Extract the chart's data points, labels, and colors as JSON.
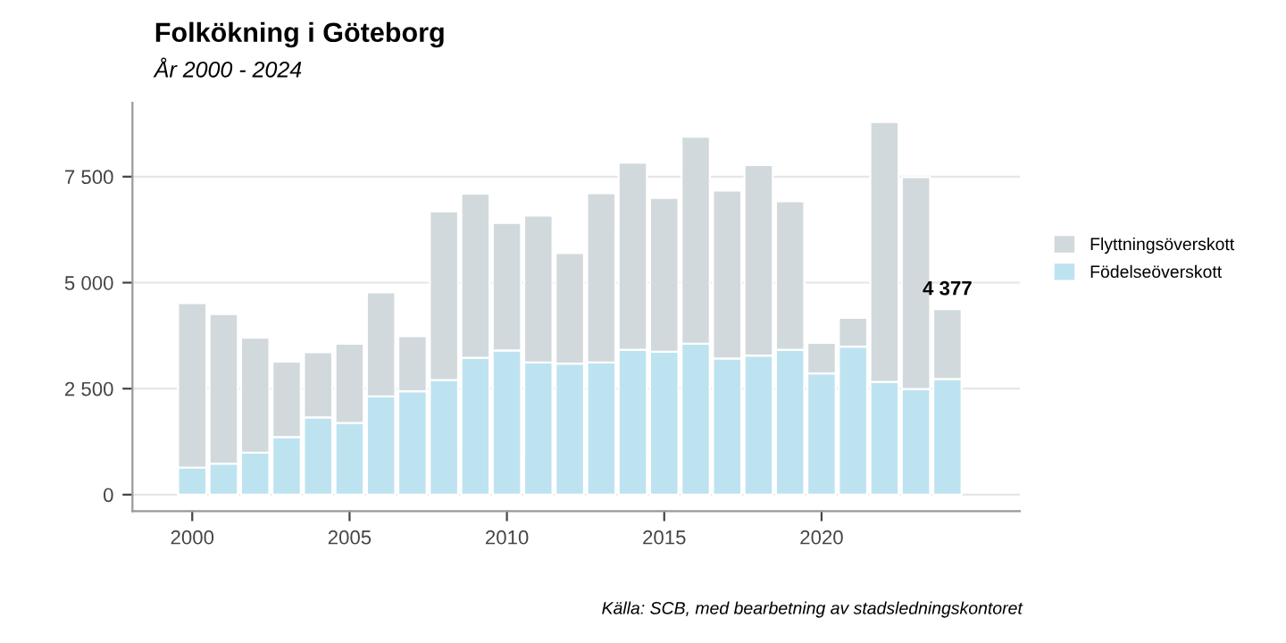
{
  "chart_data": {
    "type": "bar",
    "title": "Folkökning i Göteborg",
    "subtitle": "År 2000 - 2024",
    "x": [
      2000,
      2001,
      2002,
      2003,
      2004,
      2005,
      2006,
      2007,
      2008,
      2009,
      2010,
      2011,
      2012,
      2013,
      2014,
      2015,
      2016,
      2017,
      2018,
      2019,
      2020,
      2021,
      2022,
      2023,
      2024
    ],
    "stacked": true,
    "series": [
      {
        "name": "Födelseöverskott",
        "color": "#bee3f0",
        "values": [
          640,
          730,
          990,
          1360,
          1820,
          1690,
          2320,
          2440,
          2700,
          3230,
          3400,
          3120,
          3090,
          3120,
          3420,
          3370,
          3560,
          3210,
          3280,
          3420,
          2860,
          3490,
          2660,
          2490,
          2730
        ]
      },
      {
        "name": "Flyttningsöverskott",
        "color": "#d1d9dc",
        "values": [
          3880,
          3530,
          2710,
          1780,
          1540,
          1870,
          2450,
          1300,
          3980,
          3870,
          3010,
          3460,
          2610,
          3990,
          4410,
          3630,
          4880,
          3960,
          4490,
          3500,
          720,
          680,
          6130,
          5000,
          1647
        ]
      }
    ],
    "annotations": [
      {
        "text": "4 377",
        "x": 2024,
        "y": 4377
      },
      "Källa: SCB, med bearbetning av stadsledningskontoret"
    ],
    "xlim": [
      1998.1,
      2026.3
    ],
    "xticks": [
      2000,
      2005,
      2010,
      2015,
      2020
    ],
    "ylim": [
      -390,
      9240
    ],
    "yticks": [
      {
        "value": 0,
        "label": "0"
      },
      {
        "value": 2500,
        "label": "2 500"
      },
      {
        "value": 5000,
        "label": "5 000"
      },
      {
        "value": 7500,
        "label": "7 500"
      }
    ],
    "grid": "y",
    "legend": "right"
  }
}
